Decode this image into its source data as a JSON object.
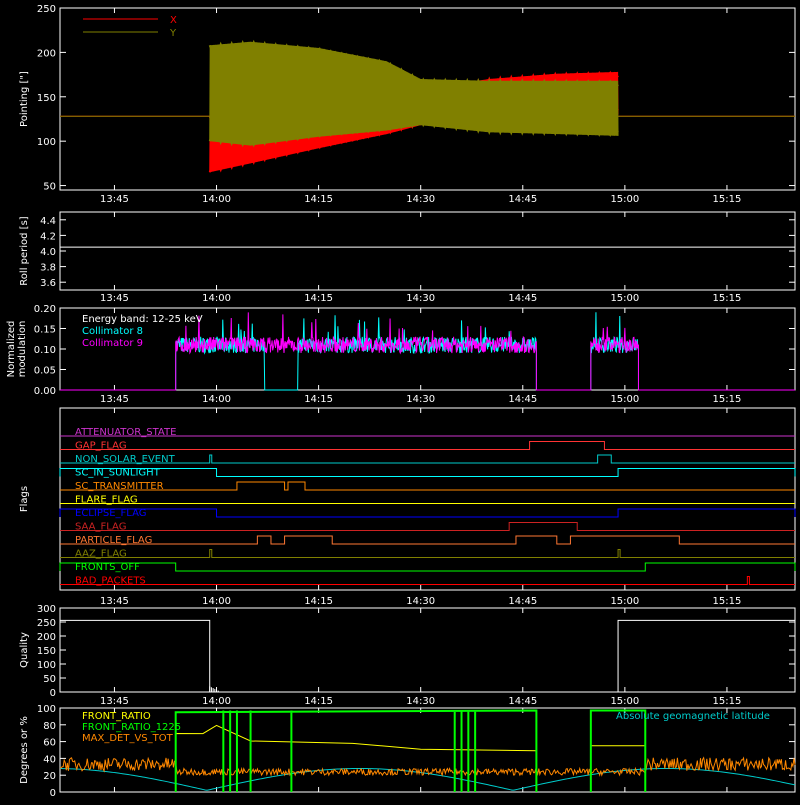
{
  "time_ticks": [
    "13:45",
    "14:00",
    "14:15",
    "14:30",
    "14:45",
    "15:00",
    "15:15"
  ],
  "time_range": [
    "13:37",
    "15:25"
  ],
  "chart_data": [
    {
      "id": "pointing",
      "type": "line",
      "ylabel": "Pointing [\"]",
      "ylim": [
        45,
        250
      ],
      "yticks": [
        "50",
        "100",
        "150",
        "200",
        "250"
      ],
      "ytick_values": [
        50,
        100,
        150,
        200,
        250
      ],
      "legend": [
        {
          "name": "X",
          "color": "#ff0000"
        },
        {
          "name": "Y",
          "color": "#808000"
        }
      ],
      "series": [
        {
          "name": "X",
          "color": "#ff0000",
          "baseline": 128,
          "oscillation_start": "13:59",
          "oscillation_end": "14:59",
          "envelope_time": [
            "13:59",
            "14:05",
            "14:15",
            "14:25",
            "14:30",
            "14:40",
            "14:50",
            "14:59"
          ],
          "envelope_low": [
            65,
            75,
            92,
            108,
            118,
            128,
            130,
            130
          ],
          "envelope_high": [
            128,
            140,
            140,
            140,
            158,
            170,
            176,
            178
          ]
        },
        {
          "name": "Y",
          "color": "#808000",
          "baseline": 128,
          "oscillation_start": "13:59",
          "oscillation_end": "14:59",
          "envelope_time": [
            "13:59",
            "14:05",
            "14:15",
            "14:25",
            "14:30",
            "14:40",
            "14:50",
            "14:59"
          ],
          "envelope_low": [
            100,
            95,
            105,
            112,
            118,
            110,
            108,
            106
          ],
          "envelope_high": [
            208,
            212,
            205,
            190,
            170,
            168,
            168,
            168
          ]
        }
      ]
    },
    {
      "id": "roll",
      "type": "line",
      "ylabel": "Roll period [s]",
      "ylim": [
        3.5,
        4.5
      ],
      "yticks": [
        "3.6",
        "3.8",
        "4.0",
        "4.2",
        "4.4"
      ],
      "ytick_values": [
        3.6,
        3.8,
        4.0,
        4.2,
        4.4
      ],
      "series": [
        {
          "name": "",
          "color": "#ffffff",
          "value": 4.05
        }
      ]
    },
    {
      "id": "modulation",
      "type": "line",
      "ylabel": [
        "Normalized",
        "modulation"
      ],
      "ylim": [
        0.0,
        0.2
      ],
      "yticks": [
        "0.00",
        "0.05",
        "0.10",
        "0.15",
        "0.20"
      ],
      "ytick_values": [
        0.0,
        0.05,
        0.1,
        0.15,
        0.2
      ],
      "annotation": "Energy band: 12-25 keV",
      "legend": [
        {
          "name": "Collimator 8",
          "color": "#00ffff"
        },
        {
          "name": "Collimator 9",
          "color": "#ff00ff"
        }
      ],
      "active_intervals": [
        [
          "13:54",
          "14:47"
        ],
        [
          "14:55",
          "15:02"
        ]
      ],
      "gap_c8": [
        "14:07",
        "14:12"
      ],
      "level": 0.11
    },
    {
      "id": "flags",
      "type": "step",
      "ylabel": "Flags",
      "flags": [
        {
          "name": "ATTENUATOR_STATE",
          "color": "#cc33cc",
          "steps": []
        },
        {
          "name": "GAP_FLAG",
          "color": "#ff3333",
          "steps": [
            [
              "14:46",
              "14:57"
            ]
          ]
        },
        {
          "name": "NON_SOLAR_EVENT",
          "color": "#00cccc",
          "steps": [
            [
              "13:59",
              "13:59.3"
            ],
            [
              "14:56",
              "14:58"
            ]
          ]
        },
        {
          "name": "SC_IN_SUNLIGHT",
          "color": "#00ffff",
          "steps": [
            [
              "13:37",
              "14:00"
            ],
            [
              "14:59",
              "15:25"
            ]
          ],
          "invert": true
        },
        {
          "name": "SC_TRANSMITTER",
          "color": "#ff8800",
          "steps": [
            [
              "14:03",
              "14:10"
            ],
            [
              "14:10.5",
              "14:13"
            ]
          ]
        },
        {
          "name": "FLARE_FLAG",
          "color": "#ffff00",
          "steps": []
        },
        {
          "name": "ECLIPSE_FLAG",
          "color": "#0000ff",
          "steps": [
            [
              "13:37",
              "14:00"
            ],
            [
              "14:59",
              "15:25"
            ]
          ]
        },
        {
          "name": "SAA_FLAG",
          "color": "#cc2222",
          "steps": [
            [
              "14:43",
              "14:53"
            ]
          ]
        },
        {
          "name": "PARTICLE_FLAG",
          "color": "#ff7733",
          "steps": [
            [
              "14:06",
              "14:08"
            ],
            [
              "14:10",
              "14:17"
            ],
            [
              "14:44",
              "14:50"
            ],
            [
              "14:52",
              "15:08"
            ]
          ]
        },
        {
          "name": "AAZ_FLAG",
          "color": "#808000",
          "steps": [
            [
              "13:59",
              "13:59.3"
            ],
            [
              "14:59",
              "14:59.3"
            ]
          ]
        },
        {
          "name": "FRONTS_OFF",
          "color": "#00ff00",
          "steps": [
            [
              "13:37",
              "13:54"
            ],
            [
              "15:03",
              "15:25"
            ]
          ]
        },
        {
          "name": "BAD_PACKETS",
          "color": "#ff0000",
          "steps": [
            [
              "15:18",
              "15:18.3"
            ]
          ]
        }
      ]
    },
    {
      "id": "quality",
      "type": "line",
      "ylabel": "Quality",
      "ylim": [
        0,
        300
      ],
      "yticks": [
        "0",
        "50",
        "100",
        "150",
        "200",
        "250",
        "300"
      ],
      "ytick_values": [
        0,
        50,
        100,
        150,
        200,
        250,
        300
      ],
      "segments": [
        [
          "13:37",
          "13:59",
          256
        ],
        [
          "14:59",
          "15:25",
          256
        ]
      ]
    },
    {
      "id": "degrees",
      "type": "line",
      "ylabel": "Degrees or %",
      "ylim": [
        0,
        100
      ],
      "yticks": [
        "0",
        "20",
        "40",
        "60",
        "80",
        "100"
      ],
      "ytick_values": [
        0,
        20,
        40,
        60,
        80,
        100
      ],
      "legend": [
        {
          "name": "FRONT_RATIO",
          "color": "#ffff00"
        },
        {
          "name": "FRONT_RATIO_1225",
          "color": "#00ff00"
        },
        {
          "name": "MAX_DET_VS_TOT",
          "color": "#ff8800"
        }
      ],
      "annotation": "Absolute geomagnetic latitude",
      "annotation_color": "#00cccc"
    }
  ]
}
